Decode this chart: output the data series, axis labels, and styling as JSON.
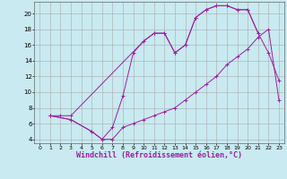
{
  "background_color": "#c8eaf0",
  "grid_color": "#aaaaaa",
  "line_color": "#9b1fa0",
  "marker": "+",
  "xlabel": "Windchill (Refroidissement éolien,°C)",
  "xlabel_fontsize": 6,
  "xtick_fontsize": 4.5,
  "ytick_fontsize": 5,
  "xlim": [
    -0.5,
    23.5
  ],
  "ylim": [
    3.5,
    21.5
  ],
  "yticks": [
    4,
    6,
    8,
    10,
    12,
    14,
    16,
    18,
    20
  ],
  "xticks": [
    0,
    1,
    2,
    3,
    4,
    5,
    6,
    7,
    8,
    9,
    10,
    11,
    12,
    13,
    14,
    15,
    16,
    17,
    18,
    19,
    20,
    21,
    22,
    23
  ],
  "series": [
    {
      "x": [
        1,
        2,
        3,
        10,
        11,
        12,
        13,
        14,
        15,
        16,
        17,
        18,
        19,
        20,
        21
      ],
      "y": [
        7,
        7,
        7,
        16.5,
        17.5,
        17.5,
        15,
        16,
        19.5,
        20.5,
        21,
        21,
        20.5,
        20.5,
        17.5
      ]
    },
    {
      "x": [
        1,
        3,
        5,
        6,
        7,
        8,
        9,
        10,
        11,
        12,
        13,
        14,
        15,
        16,
        17,
        18,
        19,
        20,
        21,
        22,
        23
      ],
      "y": [
        7,
        6.5,
        5,
        4,
        5.5,
        9.5,
        15,
        16.5,
        17.5,
        17.5,
        15,
        16,
        19.5,
        20.5,
        21,
        21,
        20.5,
        20.5,
        17.5,
        15,
        11.5
      ]
    },
    {
      "x": [
        1,
        3,
        5,
        6,
        7,
        8,
        9,
        10,
        11,
        12,
        13,
        14,
        15,
        16,
        17,
        18,
        19,
        20,
        21,
        22,
        23
      ],
      "y": [
        7,
        6.5,
        5,
        4,
        4,
        5.5,
        6,
        6.5,
        7,
        7.5,
        8,
        9,
        10,
        11,
        12,
        13.5,
        14.5,
        15.5,
        17,
        18,
        9
      ]
    }
  ]
}
